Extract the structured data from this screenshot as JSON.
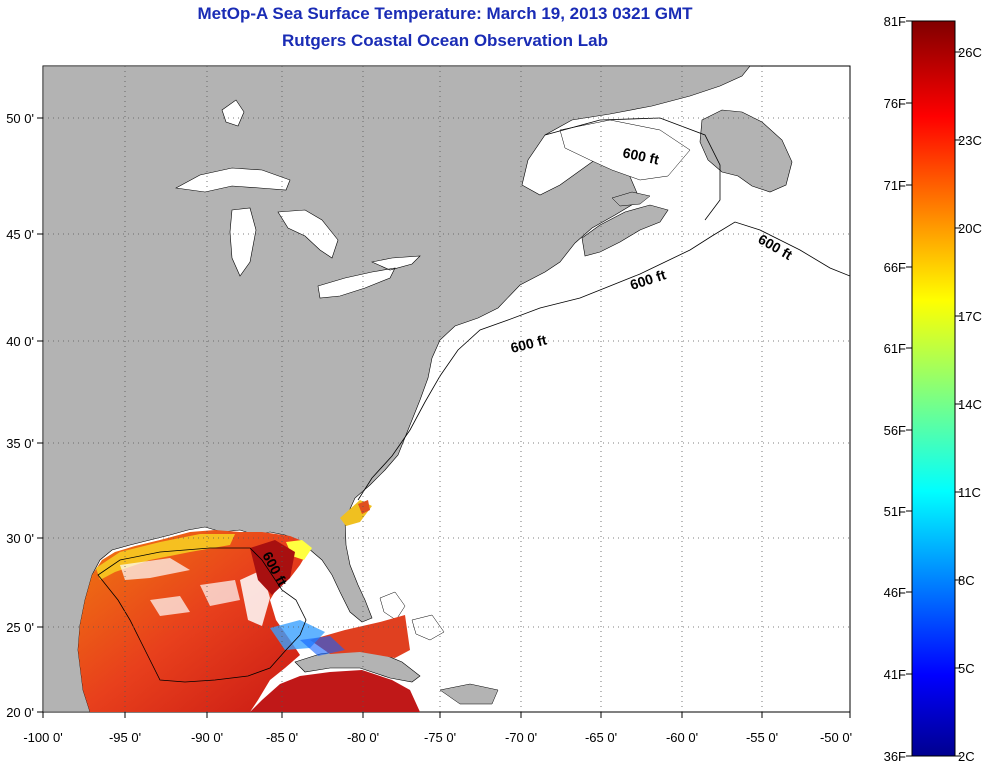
{
  "title": "MetOp-A Sea Surface Temperature:  March 19, 2013 0321 GMT",
  "subtitle": "Rutgers Coastal Ocean Observation Lab",
  "map": {
    "lon_ticks": [
      "-100 0'",
      "-95 0'",
      "-90 0'",
      "-85 0'",
      "-80 0'",
      "-75 0'",
      "-70 0'",
      "-65 0'",
      "-60 0'",
      "-55 0'",
      "-50 0'"
    ],
    "lat_ticks": [
      "50 0'",
      "45 0'",
      "40 0'",
      "35 0'",
      "30 0'",
      "25 0'",
      "20 0'"
    ],
    "contour_labels": [
      "600 ft",
      "600 ft",
      "600 ft",
      "600 ft",
      "600 ft"
    ],
    "land_color": "#b3b3b3",
    "grid": "dotted"
  },
  "colorbar": {
    "fahrenheit_labels": [
      "81F",
      "76F",
      "71F",
      "66F",
      "61F",
      "56F",
      "51F",
      "46F",
      "41F",
      "36F"
    ],
    "celsius_labels": [
      "26C",
      "23C",
      "20C",
      "17C",
      "14C",
      "11C",
      "8C",
      "5C",
      "2C"
    ],
    "colormap": "jet",
    "range_f": [
      36,
      81
    ],
    "range_c": [
      2,
      27
    ]
  }
}
